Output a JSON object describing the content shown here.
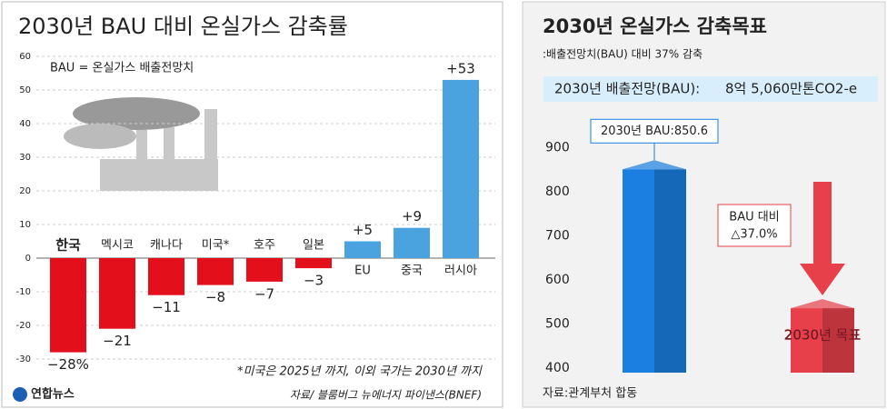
{
  "chart_data": [
    {
      "type": "bar",
      "title": "2030년 BAU 대비 온실가스 감축률",
      "note": "BAU = 온실가스 배출전망치",
      "categories": [
        "한국",
        "멕시코",
        "캐나다",
        "미국*",
        "호주",
        "일본",
        "EU",
        "중국",
        "러시아"
      ],
      "values": [
        -28,
        -21,
        -11,
        -8,
        -7,
        -3,
        5,
        9,
        53
      ],
      "value_labels": [
        "−28%",
        "−21",
        "−11",
        "−8",
        "−7",
        "−3",
        "+5",
        "+9",
        "+53"
      ],
      "colors": [
        "#e3101c",
        "#e3101c",
        "#e3101c",
        "#e3101c",
        "#e3101c",
        "#e3101c",
        "#4aa3df",
        "#4aa3df",
        "#4aa3df"
      ],
      "ylim": [
        -30,
        60
      ],
      "yticks": [
        60,
        50,
        40,
        30,
        20,
        10,
        0,
        -10,
        -20,
        -30
      ],
      "grid": true,
      "footnote": "*미국은 2025년 까지, 이외 국가는 2030년 까지",
      "source": "자료/ 블룸버그 뉴에너지 파이낸스(BNEF)",
      "logo": "연합뉴스"
    },
    {
      "type": "bar",
      "title": "2030년 온실가스 감축목표",
      "subtitle": ":배출전망치(BAU) 대비 37% 감축",
      "banner_label": "2030년 배출전망(BAU):",
      "banner_value": "8억 5,060만톤CO2-e",
      "categories": [
        null,
        "2030년 목표"
      ],
      "values": [
        850.6,
        536
      ],
      "value_labels": [
        "2030년 BAU:850.6",
        null
      ],
      "colors": [
        "#1a7fe0",
        "#e8404a"
      ],
      "ylim": [
        390,
        950
      ],
      "yticks": [
        400,
        500,
        600,
        700,
        800,
        900
      ],
      "grid": false,
      "annotation": [
        "BAU 대비",
        "△37.0%"
      ],
      "source": "자료:관계부처 합동"
    }
  ]
}
